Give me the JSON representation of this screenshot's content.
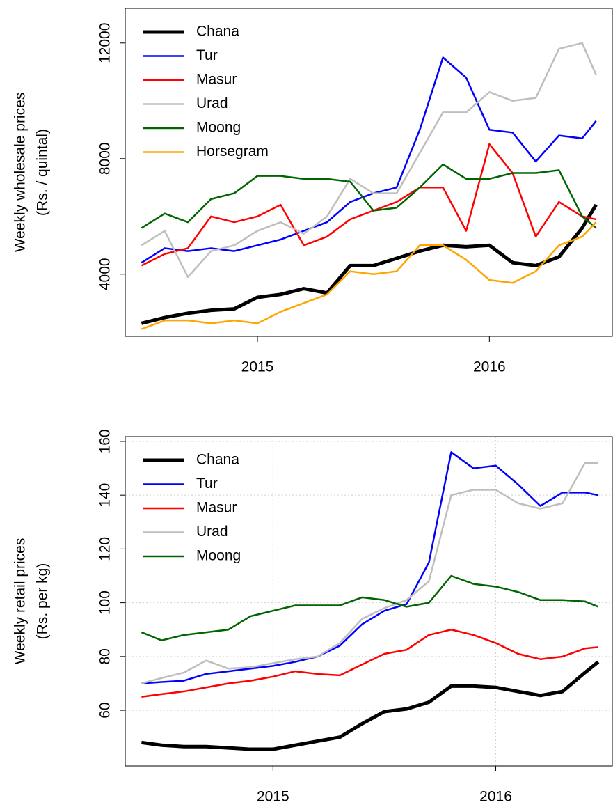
{
  "chart_data": [
    {
      "type": "line",
      "ylabel": [
        "Weekly wholesale prices",
        "(Rs. / quintal)"
      ],
      "x": [
        2014.5,
        2014.6,
        2014.7,
        2014.8,
        2014.9,
        2015.0,
        2015.1,
        2015.2,
        2015.3,
        2015.4,
        2015.5,
        2015.6,
        2015.7,
        2015.8,
        2015.9,
        2016.0,
        2016.1,
        2016.2,
        2016.3,
        2016.4,
        2016.46
      ],
      "xlim": [
        2014.43,
        2016.53
      ],
      "xticks": [
        2015,
        2016
      ],
      "ylim": [
        1850,
        13200
      ],
      "yticks": [
        4000,
        8000,
        12000
      ],
      "grid": false,
      "legend": "top-left",
      "series": [
        {
          "name": "Chana",
          "color": "#000000",
          "width": 5,
          "values": [
            2300,
            2500,
            2650,
            2750,
            2800,
            3200,
            3300,
            3500,
            3350,
            4300,
            4300,
            4550,
            4800,
            5000,
            4950,
            5000,
            4400,
            4300,
            4600,
            5600,
            6400
          ]
        },
        {
          "name": "Tur",
          "color": "#0000ff",
          "width": 2.5,
          "values": [
            4400,
            4900,
            4800,
            4900,
            4800,
            5000,
            5200,
            5500,
            5800,
            6500,
            6800,
            7000,
            9000,
            11500,
            10800,
            9000,
            8900,
            7900,
            8800,
            8700,
            9300
          ]
        },
        {
          "name": "Masur",
          "color": "#ff0000",
          "width": 2.5,
          "values": [
            4300,
            4700,
            4900,
            6000,
            5800,
            6000,
            6400,
            5000,
            5300,
            5900,
            6200,
            6500,
            7000,
            7000,
            5500,
            8500,
            7500,
            5300,
            6500,
            6000,
            5900
          ]
        },
        {
          "name": "Urad",
          "color": "#bebebe",
          "width": 2.5,
          "values": [
            5000,
            5500,
            3900,
            4800,
            5000,
            5500,
            5800,
            5400,
            6000,
            7300,
            6800,
            6800,
            8200,
            9600,
            9600,
            10300,
            10000,
            10100,
            11800,
            12000,
            10900
          ]
        },
        {
          "name": "Moong",
          "color": "#006400",
          "width": 2.5,
          "values": [
            5600,
            6100,
            5800,
            6600,
            6800,
            7400,
            7400,
            7300,
            7300,
            7200,
            6200,
            6300,
            7000,
            7800,
            7300,
            7300,
            7500,
            7500,
            7600,
            6000,
            5600
          ]
        },
        {
          "name": "Horsegram",
          "color": "#ffa500",
          "width": 2.5,
          "values": [
            2100,
            2400,
            2400,
            2300,
            2400,
            2300,
            2700,
            3000,
            3300,
            4100,
            4000,
            4100,
            5000,
            5000,
            4500,
            3800,
            3700,
            4100,
            5000,
            5300,
            5800
          ]
        }
      ]
    },
    {
      "type": "line",
      "ylabel": [
        "Weekly retail prices",
        "(Rs. per kg)"
      ],
      "x": [
        2014.41,
        2014.5,
        2014.6,
        2014.7,
        2014.8,
        2014.9,
        2015.0,
        2015.1,
        2015.2,
        2015.3,
        2015.4,
        2015.5,
        2015.6,
        2015.7,
        2015.8,
        2015.9,
        2016.0,
        2016.1,
        2016.2,
        2016.3,
        2016.4,
        2016.46
      ],
      "xlim": [
        2014.337,
        2016.523
      ],
      "xticks": [
        2015,
        2016
      ],
      "ylim": [
        39.3,
        161.8
      ],
      "yticks": [
        60,
        80,
        100,
        120,
        140,
        160
      ],
      "grid": true,
      "legend": "top-left",
      "series": [
        {
          "name": "Chana",
          "color": "#000000",
          "width": 5,
          "values": [
            48,
            47,
            46.5,
            46.5,
            46,
            45.5,
            45.5,
            47,
            48.5,
            50,
            55,
            59.5,
            60.5,
            63,
            69,
            69,
            68.5,
            67,
            65.5,
            67,
            74,
            78
          ]
        },
        {
          "name": "Tur",
          "color": "#0000ff",
          "width": 2.5,
          "values": [
            70,
            70.5,
            71,
            73.5,
            74.5,
            75.5,
            76.5,
            78,
            80,
            84,
            92,
            97,
            99.5,
            115,
            156,
            150,
            151,
            144,
            136,
            141,
            141,
            140
          ]
        },
        {
          "name": "Masur",
          "color": "#ff0000",
          "width": 2.5,
          "values": [
            65,
            66,
            67,
            68.5,
            70,
            71,
            72.5,
            74.5,
            73.5,
            73,
            77,
            81,
            82.5,
            88,
            90,
            88,
            85,
            81,
            79,
            80,
            83,
            83.5
          ]
        },
        {
          "name": "Urad",
          "color": "#bebebe",
          "width": 2.5,
          "values": [
            70,
            72,
            74,
            78.5,
            75.5,
            76,
            77.5,
            79,
            80,
            85,
            94,
            98,
            101,
            108,
            140,
            142,
            142,
            137,
            135,
            137,
            152,
            152
          ]
        },
        {
          "name": "Moong",
          "color": "#006400",
          "width": 2.5,
          "values": [
            89,
            86,
            88,
            89,
            90,
            95,
            97,
            99,
            99,
            99,
            102,
            101,
            98.5,
            100,
            110,
            107,
            106,
            104,
            101,
            101,
            100.5,
            98.5
          ]
        }
      ]
    }
  ]
}
